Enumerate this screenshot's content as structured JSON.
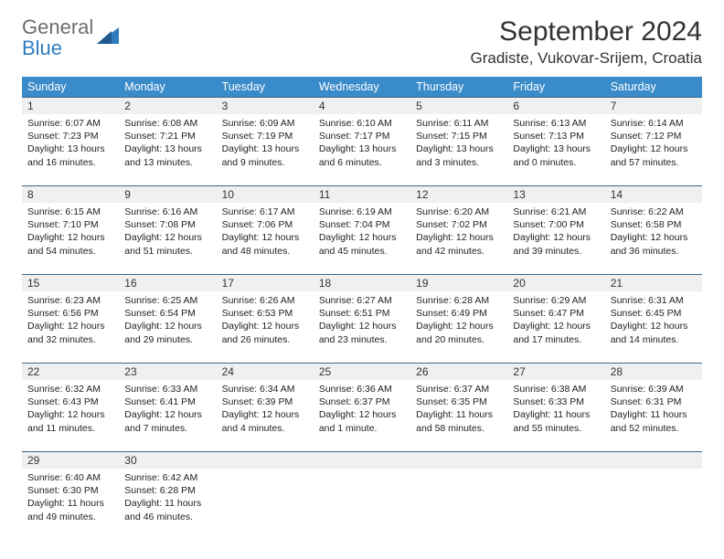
{
  "logo": {
    "line1": "General",
    "line2": "Blue"
  },
  "title": "September 2024",
  "location": "Gradiste, Vukovar-Srijem, Croatia",
  "colors": {
    "header_bg": "#3a8bc9",
    "header_fg": "#ffffff",
    "daynum_bg": "#eef0f1",
    "daynum_border": "#3a6a8f",
    "text": "#222222",
    "logo_gray": "#6e6e6e",
    "logo_blue": "#2f7bbf"
  },
  "typography": {
    "title_fontsize": 30,
    "location_fontsize": 17,
    "dayheader_fontsize": 12.5,
    "daynum_fontsize": 12,
    "body_fontsize": 10.5
  },
  "day_names": [
    "Sunday",
    "Monday",
    "Tuesday",
    "Wednesday",
    "Thursday",
    "Friday",
    "Saturday"
  ],
  "weeks": [
    [
      {
        "n": "1",
        "sr": "6:07 AM",
        "ss": "7:23 PM",
        "dl": "13 hours and 16 minutes."
      },
      {
        "n": "2",
        "sr": "6:08 AM",
        "ss": "7:21 PM",
        "dl": "13 hours and 13 minutes."
      },
      {
        "n": "3",
        "sr": "6:09 AM",
        "ss": "7:19 PM",
        "dl": "13 hours and 9 minutes."
      },
      {
        "n": "4",
        "sr": "6:10 AM",
        "ss": "7:17 PM",
        "dl": "13 hours and 6 minutes."
      },
      {
        "n": "5",
        "sr": "6:11 AM",
        "ss": "7:15 PM",
        "dl": "13 hours and 3 minutes."
      },
      {
        "n": "6",
        "sr": "6:13 AM",
        "ss": "7:13 PM",
        "dl": "13 hours and 0 minutes."
      },
      {
        "n": "7",
        "sr": "6:14 AM",
        "ss": "7:12 PM",
        "dl": "12 hours and 57 minutes."
      }
    ],
    [
      {
        "n": "8",
        "sr": "6:15 AM",
        "ss": "7:10 PM",
        "dl": "12 hours and 54 minutes."
      },
      {
        "n": "9",
        "sr": "6:16 AM",
        "ss": "7:08 PM",
        "dl": "12 hours and 51 minutes."
      },
      {
        "n": "10",
        "sr": "6:17 AM",
        "ss": "7:06 PM",
        "dl": "12 hours and 48 minutes."
      },
      {
        "n": "11",
        "sr": "6:19 AM",
        "ss": "7:04 PM",
        "dl": "12 hours and 45 minutes."
      },
      {
        "n": "12",
        "sr": "6:20 AM",
        "ss": "7:02 PM",
        "dl": "12 hours and 42 minutes."
      },
      {
        "n": "13",
        "sr": "6:21 AM",
        "ss": "7:00 PM",
        "dl": "12 hours and 39 minutes."
      },
      {
        "n": "14",
        "sr": "6:22 AM",
        "ss": "6:58 PM",
        "dl": "12 hours and 36 minutes."
      }
    ],
    [
      {
        "n": "15",
        "sr": "6:23 AM",
        "ss": "6:56 PM",
        "dl": "12 hours and 32 minutes."
      },
      {
        "n": "16",
        "sr": "6:25 AM",
        "ss": "6:54 PM",
        "dl": "12 hours and 29 minutes."
      },
      {
        "n": "17",
        "sr": "6:26 AM",
        "ss": "6:53 PM",
        "dl": "12 hours and 26 minutes."
      },
      {
        "n": "18",
        "sr": "6:27 AM",
        "ss": "6:51 PM",
        "dl": "12 hours and 23 minutes."
      },
      {
        "n": "19",
        "sr": "6:28 AM",
        "ss": "6:49 PM",
        "dl": "12 hours and 20 minutes."
      },
      {
        "n": "20",
        "sr": "6:29 AM",
        "ss": "6:47 PM",
        "dl": "12 hours and 17 minutes."
      },
      {
        "n": "21",
        "sr": "6:31 AM",
        "ss": "6:45 PM",
        "dl": "12 hours and 14 minutes."
      }
    ],
    [
      {
        "n": "22",
        "sr": "6:32 AM",
        "ss": "6:43 PM",
        "dl": "12 hours and 11 minutes."
      },
      {
        "n": "23",
        "sr": "6:33 AM",
        "ss": "6:41 PM",
        "dl": "12 hours and 7 minutes."
      },
      {
        "n": "24",
        "sr": "6:34 AM",
        "ss": "6:39 PM",
        "dl": "12 hours and 4 minutes."
      },
      {
        "n": "25",
        "sr": "6:36 AM",
        "ss": "6:37 PM",
        "dl": "12 hours and 1 minute."
      },
      {
        "n": "26",
        "sr": "6:37 AM",
        "ss": "6:35 PM",
        "dl": "11 hours and 58 minutes."
      },
      {
        "n": "27",
        "sr": "6:38 AM",
        "ss": "6:33 PM",
        "dl": "11 hours and 55 minutes."
      },
      {
        "n": "28",
        "sr": "6:39 AM",
        "ss": "6:31 PM",
        "dl": "11 hours and 52 minutes."
      }
    ],
    [
      {
        "n": "29",
        "sr": "6:40 AM",
        "ss": "6:30 PM",
        "dl": "11 hours and 49 minutes."
      },
      {
        "n": "30",
        "sr": "6:42 AM",
        "ss": "6:28 PM",
        "dl": "11 hours and 46 minutes."
      },
      null,
      null,
      null,
      null,
      null
    ]
  ],
  "labels": {
    "sunrise": "Sunrise:",
    "sunset": "Sunset:",
    "daylight": "Daylight:"
  }
}
